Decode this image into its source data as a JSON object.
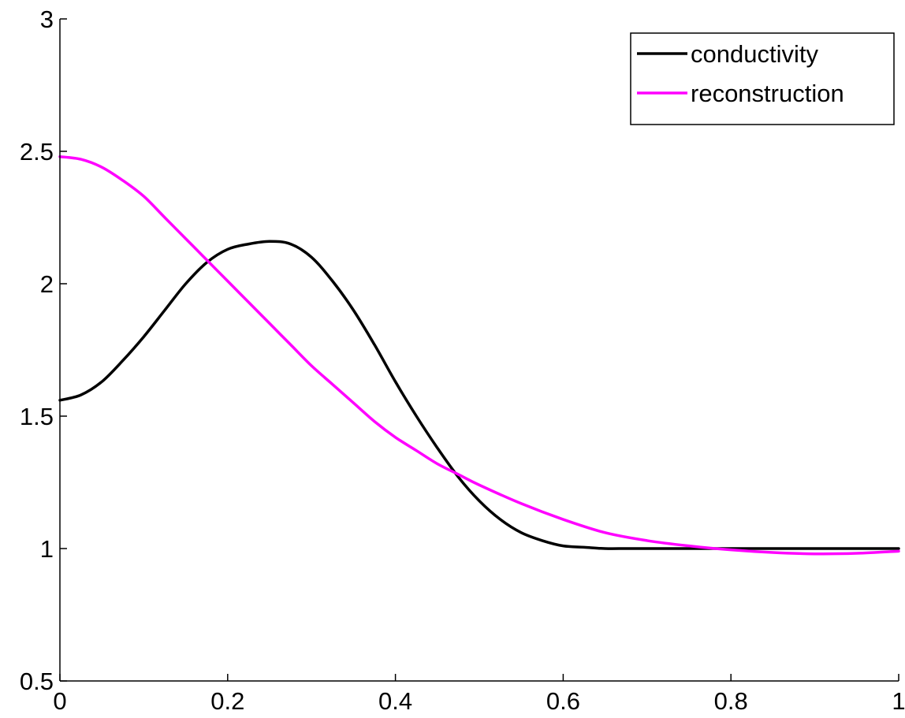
{
  "chart_data": {
    "type": "line",
    "title": "",
    "xlabel": "",
    "ylabel": "",
    "xlim": [
      0,
      1
    ],
    "ylim": [
      0.5,
      3
    ],
    "grid": false,
    "legend_position": "top-right",
    "x_ticks": [
      "0",
      "0.2",
      "0.4",
      "0.6",
      "0.8",
      "1"
    ],
    "y_ticks": [
      "0.5",
      "1",
      "1.5",
      "2",
      "2.5",
      "3"
    ],
    "x_tick_values": [
      0,
      0.2,
      0.4,
      0.6,
      0.8,
      1
    ],
    "y_tick_values": [
      0.5,
      1,
      1.5,
      2,
      2.5,
      3
    ],
    "series": [
      {
        "name": "conductivity",
        "color": "#000000",
        "x": [
          0,
          0.025,
          0.05,
          0.075,
          0.1,
          0.125,
          0.15,
          0.175,
          0.2,
          0.225,
          0.25,
          0.275,
          0.3,
          0.325,
          0.35,
          0.375,
          0.4,
          0.425,
          0.45,
          0.475,
          0.5,
          0.525,
          0.55,
          0.575,
          0.6,
          0.625,
          0.65,
          0.675,
          0.7,
          0.75,
          0.8,
          0.85,
          0.9,
          0.95,
          1
        ],
        "y": [
          1.56,
          1.58,
          1.63,
          1.71,
          1.8,
          1.9,
          2.0,
          2.08,
          2.13,
          2.15,
          2.16,
          2.15,
          2.1,
          2.01,
          1.9,
          1.77,
          1.63,
          1.5,
          1.38,
          1.27,
          1.18,
          1.11,
          1.06,
          1.03,
          1.01,
          1.005,
          1.0,
          1.0,
          1.0,
          1.0,
          1.0,
          1.0,
          1.0,
          1.0,
          1.0
        ]
      },
      {
        "name": "reconstruction",
        "color": "#ff00ff",
        "x": [
          0,
          0.025,
          0.05,
          0.075,
          0.1,
          0.125,
          0.15,
          0.175,
          0.2,
          0.225,
          0.25,
          0.275,
          0.3,
          0.325,
          0.35,
          0.375,
          0.4,
          0.425,
          0.45,
          0.475,
          0.5,
          0.55,
          0.6,
          0.65,
          0.7,
          0.75,
          0.8,
          0.85,
          0.9,
          0.95,
          1
        ],
        "y": [
          2.48,
          2.47,
          2.44,
          2.39,
          2.33,
          2.25,
          2.17,
          2.09,
          2.01,
          1.93,
          1.85,
          1.77,
          1.69,
          1.62,
          1.55,
          1.48,
          1.42,
          1.37,
          1.32,
          1.28,
          1.24,
          1.17,
          1.11,
          1.06,
          1.03,
          1.01,
          0.995,
          0.985,
          0.98,
          0.982,
          0.99
        ]
      }
    ]
  }
}
